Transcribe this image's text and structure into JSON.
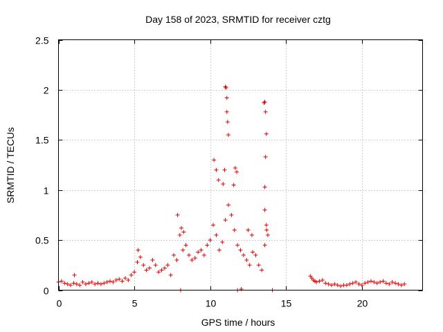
{
  "chart_data": {
    "type": "scatter",
    "title": "Day 158 of 2023, SRMTID for receiver cztg",
    "xlabel": "GPS time / hours",
    "ylabel": "SRMTID / TECUs",
    "xlim": [
      0,
      24
    ],
    "ylim": [
      0,
      2.5
    ],
    "x_ticks": [
      0,
      5,
      10,
      15,
      20
    ],
    "x_tick_labels": [
      "0",
      "5",
      "10",
      "15",
      "20"
    ],
    "y_ticks": [
      0,
      0.5,
      1,
      1.5,
      2,
      2.5
    ],
    "y_tick_labels": [
      "0",
      "0.5",
      "1",
      "1.5",
      "2",
      "2.5"
    ],
    "grid": true,
    "marker": "plus",
    "series": [
      {
        "name": "SRMTID",
        "color": "#e00000",
        "x": [
          0,
          0.2,
          0.4,
          0.6,
          0.8,
          1,
          1.2,
          1.4,
          1.6,
          1.8,
          2,
          2.2,
          2.4,
          2.6,
          2.8,
          3,
          3.2,
          3.4,
          3.6,
          3.8,
          4,
          4.2,
          4.4,
          4.6,
          4.8,
          5,
          5.2,
          5.4,
          5.6,
          5.8,
          6,
          6.2,
          6.4,
          6.6,
          6.8,
          7,
          7.2,
          7.4,
          7.6,
          7.8,
          8,
          8.2,
          8.4,
          8.6,
          8.8,
          9,
          9.2,
          9.4,
          9.6,
          9.8,
          10,
          10.2,
          10.4,
          10.6,
          10.8,
          11,
          11.2,
          11.4,
          11.6,
          11.8,
          12,
          12.2,
          12.4,
          12.6,
          12.8,
          13,
          13.2,
          13.4,
          13.6,
          13.8,
          1.05,
          5.25,
          7.85,
          8.1,
          8.25,
          10.25,
          10.4,
          10.55,
          10.85,
          10.95,
          11.0,
          11.05,
          11.1,
          11.15,
          11.1,
          11.2,
          11.55,
          11.65,
          11.75,
          12.5,
          12.75,
          13.55,
          13.6,
          13.65,
          13.7,
          13.65,
          13.6,
          13.6,
          13.7,
          13.72,
          8.05,
          11.8,
          12.05,
          14.1,
          16.6,
          16.7,
          16.8,
          16.9,
          17,
          17.2,
          17.4,
          17.6,
          17.8,
          18,
          18.2,
          18.4,
          18.6,
          18.8,
          19,
          19.2,
          19.4,
          19.6,
          19.8,
          20,
          20.2,
          20.4,
          20.6,
          20.8,
          21,
          21.2,
          21.4,
          21.6,
          21.8,
          22,
          22.2,
          22.4,
          22.6,
          22.8
        ],
        "y": [
          0.08,
          0.09,
          0.07,
          0.06,
          0.05,
          0.07,
          0.06,
          0.05,
          0.08,
          0.06,
          0.07,
          0.08,
          0.06,
          0.07,
          0.06,
          0.07,
          0.08,
          0.09,
          0.08,
          0.1,
          0.11,
          0.09,
          0.12,
          0.1,
          0.15,
          0.18,
          0.28,
          0.33,
          0.25,
          0.2,
          0.22,
          0.3,
          0.25,
          0.18,
          0.2,
          0.22,
          0.25,
          0.15,
          0.35,
          0.3,
          0.55,
          0.4,
          0.45,
          0.35,
          0.3,
          0.32,
          0.38,
          0.4,
          0.35,
          0.45,
          0.5,
          0.65,
          0.55,
          0.4,
          0.48,
          0.7,
          0.85,
          0.75,
          0.6,
          0.45,
          0.4,
          0.35,
          0.3,
          0.25,
          0.38,
          0.35,
          0.25,
          0.2,
          0.45,
          0.55,
          0.15,
          0.4,
          0.75,
          0.62,
          0.58,
          1.3,
          1.2,
          1.1,
          1.06,
          1.2,
          2.03,
          2.02,
          1.92,
          1.68,
          1.78,
          1.55,
          1.05,
          1.22,
          1.18,
          0.6,
          0.55,
          1.87,
          1.88,
          1.78,
          1.56,
          1.33,
          1.03,
          0.8,
          0.65,
          0.6,
          0.0,
          0.0,
          0.01,
          0.0,
          0.14,
          0.12,
          0.1,
          0.09,
          0.08,
          0.09,
          0.1,
          0.07,
          0.06,
          0.05,
          0.06,
          0.05,
          0.04,
          0.05,
          0.05,
          0.06,
          0.07,
          0.08,
          0.06,
          0.05,
          0.07,
          0.08,
          0.09,
          0.08,
          0.07,
          0.08,
          0.09,
          0.07,
          0.06,
          0.08,
          0.07,
          0.06,
          0.05,
          0.06
        ]
      }
    ]
  }
}
